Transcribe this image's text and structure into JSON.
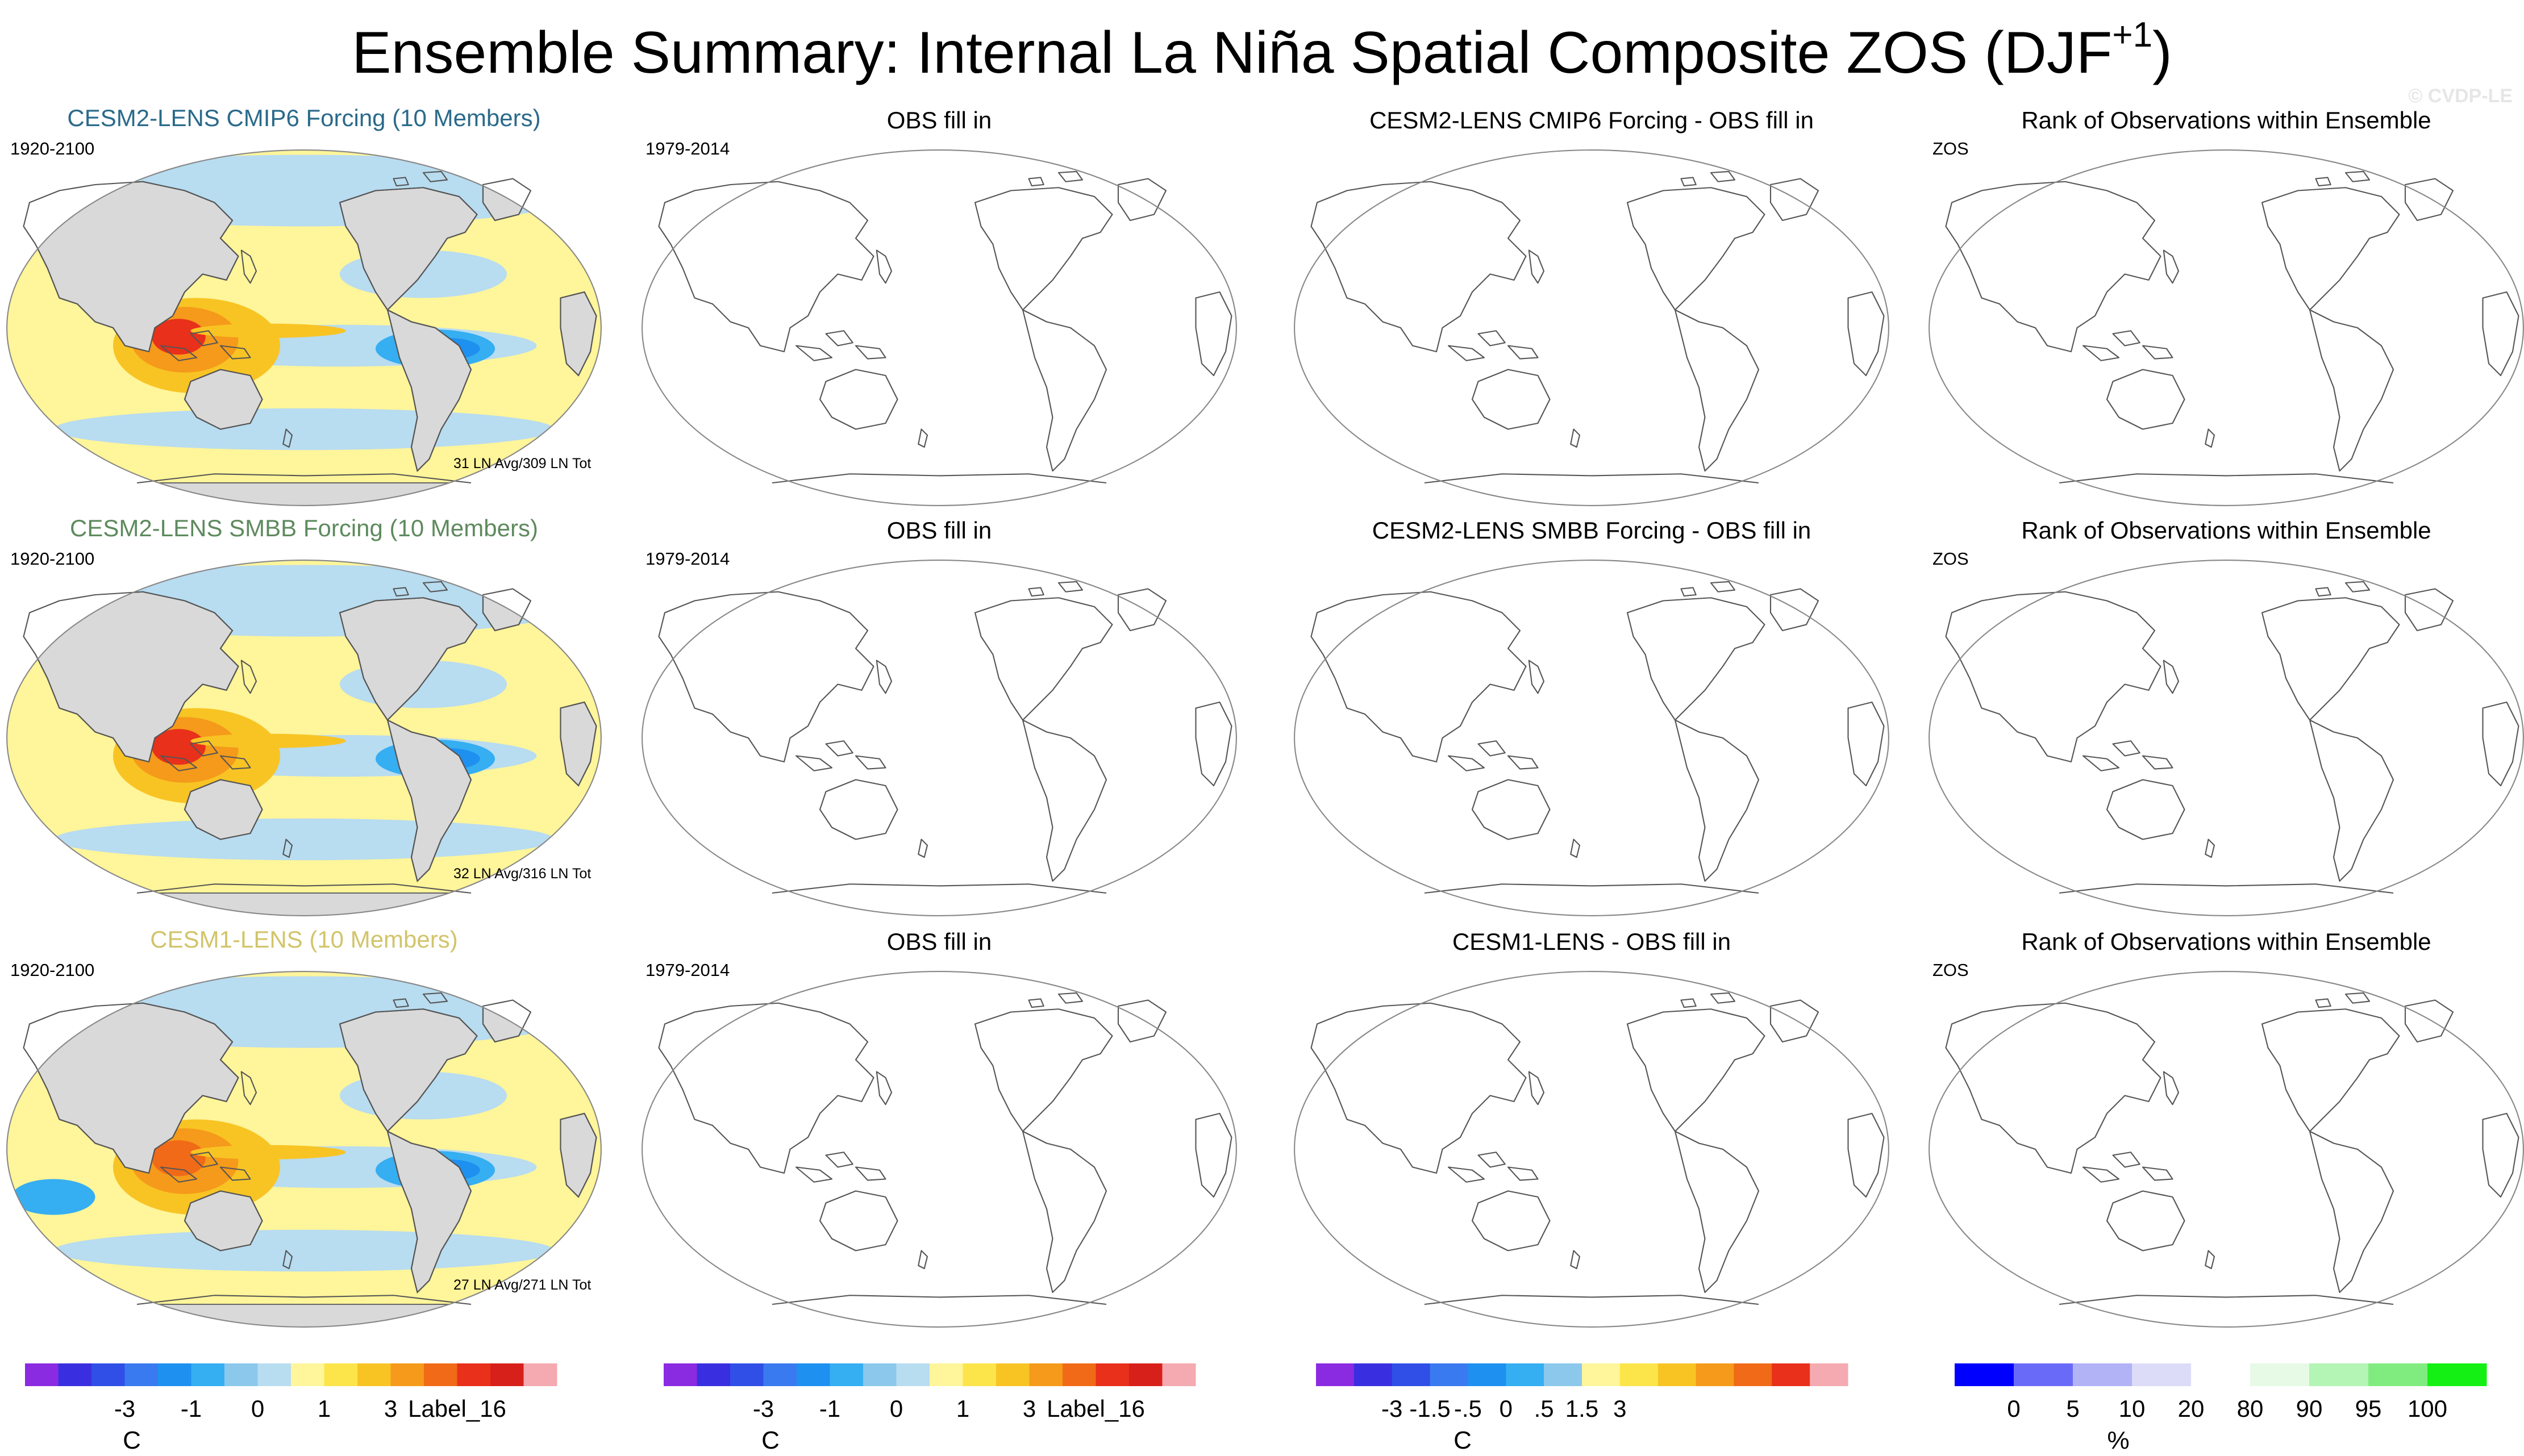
{
  "title": {
    "main": "Ensemble Summary: Internal La Niña Spatial Composite ZOS (DJF",
    "sup": "+1",
    "close": ")"
  },
  "credit": "© CVDP-LE",
  "chart_data": {
    "type": "heatmap",
    "rows": [
      {
        "ensemble": {
          "title": "CESM2-LENS CMIP6 Forcing (10 Members)",
          "title_color": "#2a6a8a",
          "years": "1920-2100",
          "annotation": "31 LN Avg/309 LN Tot"
        },
        "obs": {
          "title": "OBS fill in",
          "years": "1979-2014"
        },
        "diff": {
          "title": "CESM2-LENS CMIP6 Forcing - OBS fill in"
        },
        "rank": {
          "title": "Rank of Observations within Ensemble",
          "label": "ZOS"
        }
      },
      {
        "ensemble": {
          "title": "CESM2-LENS SMBB Forcing (10 Members)",
          "title_color": "#5e8a5e",
          "years": "1920-2100",
          "annotation": "32 LN Avg/316 LN Tot"
        },
        "obs": {
          "title": "OBS fill in",
          "years": "1979-2014"
        },
        "diff": {
          "title": "CESM2-LENS SMBB Forcing - OBS fill in"
        },
        "rank": {
          "title": "Rank of Observations within Ensemble",
          "label": "ZOS"
        }
      },
      {
        "ensemble": {
          "title": "CESM1-LENS (10 Members)",
          "title_color": "#d2c46a",
          "years": "1920-2100",
          "annotation": "27 LN Avg/271 LN Tot"
        },
        "obs": {
          "title": "OBS fill in",
          "years": "1979-2014"
        },
        "diff": {
          "title": "CESM1-LENS - OBS fill in"
        },
        "rank": {
          "title": "Rank of Observations within Ensemble",
          "label": "ZOS"
        }
      }
    ],
    "colorbars": [
      {
        "id": "ensemble",
        "unit": "C",
        "colors": [
          "#8a2be2",
          "#3a2fe0",
          "#2f4fe6",
          "#3a7af0",
          "#1e90f0",
          "#35aef2",
          "#8cc8ec",
          "#b8dcf0",
          "#fff59a",
          "#fce54a",
          "#f8c424",
          "#f59a1a",
          "#f06a18",
          "#e8301a",
          "#d8201a",
          "#f4aab0"
        ],
        "ticks": [
          {
            "label": "-3",
            "boundary": 3
          },
          {
            "label": "-1",
            "boundary": 5
          },
          {
            "label": "0",
            "boundary": 7
          },
          {
            "label": "1",
            "boundary": 9
          },
          {
            "label": "3",
            "boundary": 11
          },
          {
            "label": "Label_16",
            "boundary": 13
          }
        ]
      },
      {
        "id": "obs",
        "unit": "C",
        "colors": [
          "#8a2be2",
          "#3a2fe0",
          "#2f4fe6",
          "#3a7af0",
          "#1e90f0",
          "#35aef2",
          "#8cc8ec",
          "#b8dcf0",
          "#fff59a",
          "#fce54a",
          "#f8c424",
          "#f59a1a",
          "#f06a18",
          "#e8301a",
          "#d8201a",
          "#f4aab0"
        ],
        "ticks": [
          {
            "label": "-3",
            "boundary": 3
          },
          {
            "label": "-1",
            "boundary": 5
          },
          {
            "label": "0",
            "boundary": 7
          },
          {
            "label": "1",
            "boundary": 9
          },
          {
            "label": "3",
            "boundary": 11
          },
          {
            "label": "Label_16",
            "boundary": 13
          }
        ]
      },
      {
        "id": "diff",
        "unit": "C",
        "colors": [
          "#8a2be2",
          "#3a2fe0",
          "#2f4fe6",
          "#3a7af0",
          "#1e90f0",
          "#35aef2",
          "#8cc8ec",
          "#fff59a",
          "#fce54a",
          "#f8c424",
          "#f59a1a",
          "#f06a18",
          "#e8301a",
          "#f4aab0"
        ],
        "ticks": [
          {
            "label": "-3",
            "boundary": 2
          },
          {
            "label": "-1.5",
            "boundary": 3
          },
          {
            "label": "-.5",
            "boundary": 4
          },
          {
            "label": "0",
            "boundary": 5
          },
          {
            "label": ".5",
            "boundary": 6
          },
          {
            "label": "1.5",
            "boundary": 7
          },
          {
            "label": "3",
            "boundary": 8
          }
        ]
      },
      {
        "id": "rank",
        "unit": "%",
        "colors": [
          "#0000ff",
          "#6a6af8",
          "#b2b2f6",
          "#dcdcf8",
          "#ffffff",
          "#e6fae6",
          "#b4f4b4",
          "#80ec80",
          "#14f014"
        ],
        "ticks": [
          {
            "label": "0",
            "boundary": 1
          },
          {
            "label": "5",
            "boundary": 2
          },
          {
            "label": "10",
            "boundary": 3
          },
          {
            "label": "20",
            "boundary": 4
          },
          {
            "label": "80",
            "boundary": 5
          },
          {
            "label": "90",
            "boundary": 6
          },
          {
            "label": "95",
            "boundary": 7
          },
          {
            "label": "100",
            "boundary": 8
          }
        ]
      }
    ]
  }
}
